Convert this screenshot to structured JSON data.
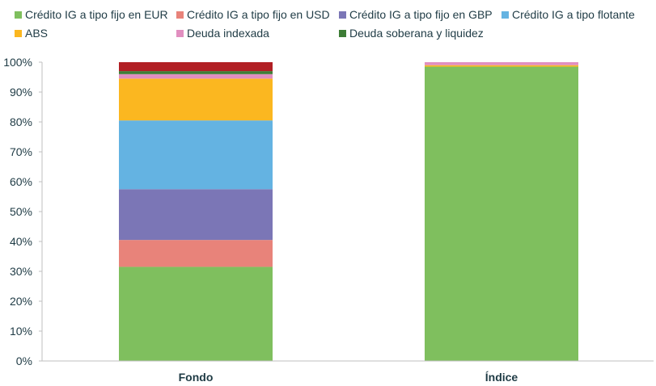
{
  "chart_data": {
    "type": "bar",
    "stacked": true,
    "categories": [
      "Fondo",
      "Índice"
    ],
    "ylim": [
      0,
      100
    ],
    "yticks": [
      0,
      10,
      20,
      30,
      40,
      50,
      60,
      70,
      80,
      90,
      100
    ],
    "ytick_suffix": "%",
    "title": "",
    "xlabel": "",
    "ylabel": "",
    "grid": false,
    "legend_position": "top",
    "legend_order": [
      "Crédito IG a tipo fijo en EUR",
      "Crédito IG a tipo fijo en USD",
      "Crédito IG a tipo fijo en GBP",
      "Crédito IG a tipo flotante",
      "ABS",
      "Deuda indexada",
      "Deuda soberana y liquidez"
    ],
    "series": [
      {
        "name": "Crédito IG a tipo fijo en EUR",
        "color": "#7fbf5e",
        "values": [
          31.5,
          98.5
        ],
        "in_legend": true
      },
      {
        "name": "Crédito IG a tipo fijo en USD",
        "color": "#e8837a",
        "values": [
          9,
          0
        ],
        "in_legend": true
      },
      {
        "name": "Crédito IG a tipo fijo en GBP",
        "color": "#7b76b6",
        "values": [
          17,
          0
        ],
        "in_legend": true
      },
      {
        "name": "Crédito IG a tipo flotante",
        "color": "#64b3e2",
        "values": [
          23,
          0
        ],
        "in_legend": true
      },
      {
        "name": "ABS",
        "color": "#fbb720",
        "values": [
          14,
          0.5
        ],
        "in_legend": true
      },
      {
        "name": "Deuda indexada",
        "color": "#e18fc0",
        "values": [
          1.5,
          1
        ],
        "in_legend": true
      },
      {
        "name": "Deuda soberana y liquidez",
        "color": "#3e7d36",
        "values": [
          1,
          0
        ],
        "in_legend": true
      },
      {
        "name": "",
        "color": "#b11f24",
        "values": [
          3,
          0
        ],
        "in_legend": false
      }
    ]
  }
}
